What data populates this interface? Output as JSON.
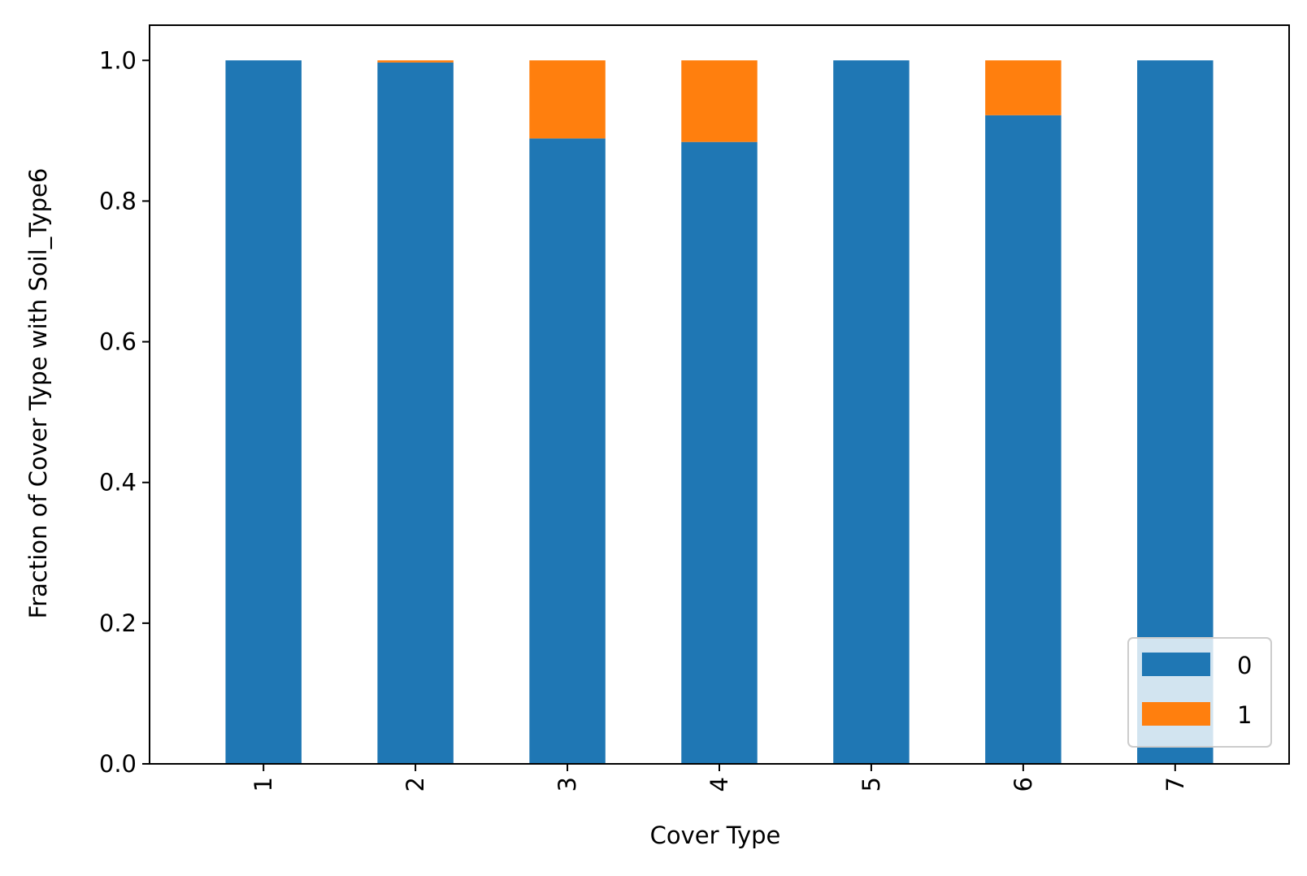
{
  "chart_data": {
    "type": "bar",
    "stacked": true,
    "categories": [
      "1",
      "2",
      "3",
      "4",
      "5",
      "6",
      "7"
    ],
    "series": [
      {
        "name": "0",
        "values": [
          1.0,
          0.997,
          0.889,
          0.884,
          1.0,
          0.922,
          1.0
        ],
        "color": "#1f77b4"
      },
      {
        "name": "1",
        "values": [
          0.0,
          0.003,
          0.111,
          0.116,
          0.0,
          0.078,
          0.0
        ],
        "color": "#ff7f0e"
      }
    ],
    "xlabel": "Cover Type",
    "ylabel": "Fraction of Cover Type with Soil_Type6",
    "ylim": [
      0.0,
      1.05
    ],
    "yticks": [
      "0.0",
      "0.2",
      "0.4",
      "0.6",
      "0.8",
      "1.0"
    ],
    "grid": false,
    "legend": {
      "placement": "lower right",
      "entries": [
        "0",
        "1"
      ]
    }
  }
}
